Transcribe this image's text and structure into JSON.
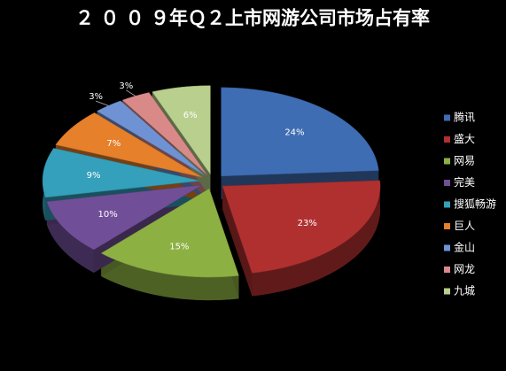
{
  "chart_data": {
    "type": "pie",
    "title": "２ ０ ０ ９年Ｑ２上市网游公司市场占有率",
    "categories": [
      "腾讯",
      "盛大",
      "网易",
      "完美",
      "搜狐畅游",
      "巨人",
      "金山",
      "网龙",
      "九城"
    ],
    "values": [
      24,
      23,
      15,
      10,
      9,
      7,
      3,
      3,
      6
    ],
    "value_labels": [
      "24%",
      "23%",
      "15%",
      "10%",
      "9%",
      "7%",
      "3%",
      "3%",
      "6%"
    ],
    "colors": [
      "#3f6db3",
      "#b03030",
      "#8db043",
      "#714f98",
      "#34a0bb",
      "#e6802b",
      "#6f92d4",
      "#d98a88",
      "#b9cf8d"
    ],
    "legend": "right"
  }
}
